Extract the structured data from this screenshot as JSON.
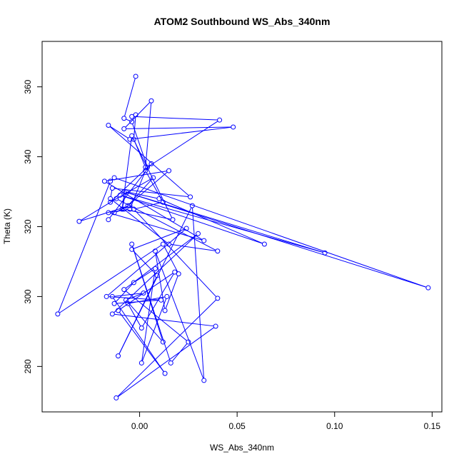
{
  "chart_data": {
    "type": "line",
    "title": "ATOM2 Southbound WS_Abs_340nm",
    "xlabel": "WS_Abs_340nm",
    "ylabel": "Theta (K)",
    "xlim": [
      -0.05,
      0.155
    ],
    "ylim": [
      267,
      373
    ],
    "xticks": [
      0.0,
      0.05,
      0.1,
      0.15
    ],
    "xtick_labels": [
      "0.00",
      "0.05",
      "0.10",
      "0.15"
    ],
    "yticks": [
      280,
      300,
      320,
      340,
      360
    ],
    "ytick_labels": [
      "280",
      "300",
      "320",
      "340",
      "360"
    ],
    "grid": false,
    "legend": "none",
    "series_color": "#0000ff",
    "marker": "open-circle",
    "series": [
      {
        "x": [
          -0.002,
          -0.008,
          -0.004,
          0.004,
          0.041,
          -0.004,
          -0.002,
          -0.003,
          0.003,
          0.006,
          -0.008,
          0.048,
          -0.005,
          -0.016,
          0.026,
          -0.014,
          -0.015,
          0.015,
          0.04,
          -0.012,
          -0.031,
          -0.005,
          -0.013,
          -0.008,
          0.017,
          -0.004,
          -0.009,
          -0.007,
          0.01,
          0.064,
          -0.01,
          0.095,
          -0.008,
          0.148,
          -0.013,
          -0.015,
          -0.042,
          0.012,
          0.02,
          0.013,
          0.008,
          0.033,
          0.027,
          -0.011,
          0.009,
          -0.004,
          0.024,
          -0.017,
          0.011,
          -0.013,
          -0.003,
          0.008,
          0.001,
          0.014,
          -0.006,
          0.001,
          0.018,
          -0.011,
          0.013,
          -0.014,
          0.002,
          -0.007,
          0.012,
          -0.004,
          0.016,
          0.025,
          -0.008,
          0.03,
          -0.014,
          0.039,
          -0.012,
          0.04,
          -0.003,
          0.012,
          0.003,
          -0.005,
          -0.016,
          0.033,
          -0.018,
          0.015,
          -0.006,
          0.007,
          -0.015,
          0.006,
          -0.016
        ],
        "y": [
          363,
          351,
          350,
          337,
          350.5,
          351.5,
          352,
          345,
          337,
          356,
          348,
          348.5,
          345,
          349,
          328.5,
          331,
          328,
          315,
          313,
          328,
          321.5,
          326,
          324,
          325,
          322,
          346,
          325,
          330,
          328,
          315,
          329,
          312.5,
          330,
          302.5,
          334,
          333,
          295,
          315,
          306.5,
          296,
          313,
          276,
          326,
          283,
          306,
          313.5,
          319.5,
          300,
          299,
          298,
          304,
          308,
          281,
          300,
          298,
          291,
          307,
          296,
          278,
          300,
          301,
          299,
          287,
          315,
          281,
          287,
          302,
          318,
          295,
          291.5,
          271,
          299.5,
          325,
          327,
          336,
          325,
          324,
          316,
          333,
          336,
          326,
          334,
          327,
          338,
          322
        ]
      }
    ]
  }
}
